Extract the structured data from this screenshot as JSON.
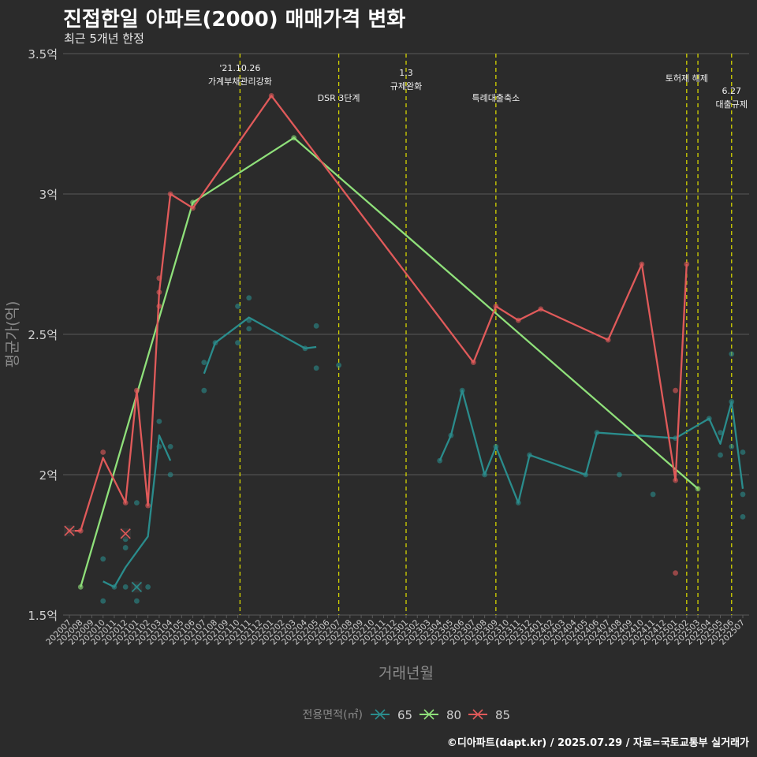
{
  "header": {
    "title": "진접한일 아파트(2000) 매매가격 변화",
    "subtitle": "최근 5개년 한정"
  },
  "footer": {
    "credit": "©디아파트(dapt.kr) / 2025.07.29 / 자료=국토교통부 실거래가"
  },
  "colors": {
    "background": "#2b2b2b",
    "grid": "#5a5a5a",
    "s65": "#2a8c8c",
    "s80": "#8fe07a",
    "s85": "#e05a5a",
    "event": "#d4d400",
    "axis_text": "#d0d0d0",
    "axis_title": "#8a8a8a"
  },
  "chart_data": {
    "type": "line",
    "xlabel": "거래년월",
    "ylabel": "평균가(억)",
    "ylim": [
      1.5,
      3.5
    ],
    "yticks": [
      1.5,
      2,
      2.5,
      3,
      3.5
    ],
    "ytick_labels": [
      "1.5억",
      "2억",
      "2.5억",
      "3억",
      "3.5억"
    ],
    "categories": [
      "202007",
      "202008",
      "202009",
      "202010",
      "202011",
      "202012",
      "202101",
      "202102",
      "202103",
      "202104",
      "202105",
      "202106",
      "202107",
      "202108",
      "202109",
      "202110",
      "202111",
      "202112",
      "202201",
      "202202",
      "202203",
      "202204",
      "202205",
      "202206",
      "202207",
      "202208",
      "202209",
      "202210",
      "202211",
      "202212",
      "202301",
      "202302",
      "202303",
      "202304",
      "202305",
      "202306",
      "202307",
      "202308",
      "202309",
      "202310",
      "202311",
      "202312",
      "202401",
      "202402",
      "202403",
      "202404",
      "202405",
      "202406",
      "202407",
      "202408",
      "202409",
      "202410",
      "202411",
      "202412",
      "202501",
      "202502",
      "202503",
      "202504",
      "202505",
      "202506",
      "202507"
    ],
    "legend": {
      "title": "전용면적(㎡)",
      "position": "bottom",
      "items": [
        "65",
        "80",
        "85"
      ]
    },
    "events": [
      {
        "x": 15.2,
        "label": "'21.10.26\n가계부채관리강화"
      },
      {
        "x": 24.0,
        "label": "DSR 3단계"
      },
      {
        "x": 30.0,
        "label": "1.3\n규제완화"
      },
      {
        "x": 38.0,
        "label": "특례대출축소"
      },
      {
        "x": 55.0,
        "label": "토허제 해제"
      },
      {
        "x": 56.0,
        "label": ""
      },
      {
        "x": 59.0,
        "label": "6.27\n대출규제"
      }
    ],
    "series": [
      {
        "name": "65",
        "line": [
          [
            3,
            1.62
          ],
          [
            4,
            1.6
          ],
          [
            5,
            1.67
          ],
          [
            7,
            1.78
          ],
          [
            8,
            2.14
          ],
          [
            9,
            2.05
          ],
          [
            12,
            2.36
          ],
          [
            13,
            2.47
          ],
          [
            15,
            2.53
          ],
          [
            16,
            2.56
          ],
          [
            21,
            2.45
          ],
          [
            22,
            2.455
          ],
          [
            33,
            2.05
          ],
          [
            34,
            2.14
          ],
          [
            35,
            2.3
          ],
          [
            37,
            2.0
          ],
          [
            38,
            2.1
          ],
          [
            40,
            1.9
          ],
          [
            41,
            2.07
          ],
          [
            46,
            2.0
          ],
          [
            47,
            2.15
          ],
          [
            54,
            2.13
          ],
          [
            57,
            2.2
          ],
          [
            58,
            2.11
          ],
          [
            59,
            2.26
          ],
          [
            60,
            1.95
          ]
        ],
        "segments": [
          [
            0,
            5
          ],
          [
            6,
            11
          ],
          [
            12,
            25
          ]
        ],
        "points": [
          [
            3,
            1.7
          ],
          [
            3,
            1.55
          ],
          [
            4,
            1.6
          ],
          [
            5,
            1.6
          ],
          [
            5,
            1.74
          ],
          [
            5,
            1.77
          ],
          [
            6,
            1.9
          ],
          [
            6,
            1.6
          ],
          [
            6,
            1.55
          ],
          [
            7,
            1.6
          ],
          [
            8,
            2.19
          ],
          [
            8,
            2.1
          ],
          [
            9,
            2.1
          ],
          [
            9,
            2.0
          ],
          [
            12,
            2.4
          ],
          [
            12,
            2.3
          ],
          [
            13,
            2.47
          ],
          [
            15,
            2.6
          ],
          [
            15,
            2.47
          ],
          [
            16,
            2.63
          ],
          [
            16,
            2.55
          ],
          [
            16,
            2.52
          ],
          [
            21,
            2.45
          ],
          [
            22,
            2.53
          ],
          [
            22,
            2.38
          ],
          [
            24,
            2.39
          ],
          [
            33,
            2.05
          ],
          [
            34,
            2.14
          ],
          [
            35,
            2.3
          ],
          [
            37,
            2.0
          ],
          [
            38,
            2.1
          ],
          [
            40,
            1.9
          ],
          [
            41,
            2.07
          ],
          [
            46,
            2.0
          ],
          [
            47,
            2.15
          ],
          [
            49,
            2.0
          ],
          [
            52,
            1.93
          ],
          [
            54,
            2.13
          ],
          [
            57,
            2.2
          ],
          [
            58,
            2.15
          ],
          [
            58,
            2.07
          ],
          [
            59,
            2.43
          ],
          [
            59,
            2.26
          ],
          [
            59,
            2.1
          ],
          [
            60,
            2.08
          ],
          [
            60,
            1.93
          ],
          [
            60,
            1.85
          ]
        ],
        "cross": [
          [
            6,
            1.6
          ]
        ]
      },
      {
        "name": "80",
        "line": [
          [
            1,
            1.6
          ],
          [
            11,
            2.97
          ],
          [
            20,
            3.2
          ],
          [
            56,
            1.95
          ]
        ],
        "segments": [
          [
            0,
            3
          ]
        ],
        "points": [
          [
            1,
            1.6
          ],
          [
            11,
            2.97
          ],
          [
            20,
            3.2
          ],
          [
            56,
            1.95
          ]
        ],
        "cross": []
      },
      {
        "name": "85",
        "line": [
          [
            0,
            1.8
          ],
          [
            1,
            1.8
          ],
          [
            3,
            2.06
          ],
          [
            5,
            1.9
          ],
          [
            6,
            2.3
          ],
          [
            7,
            1.89
          ],
          [
            8,
            2.65
          ],
          [
            9,
            3.0
          ],
          [
            11,
            2.95
          ],
          [
            18,
            3.35
          ],
          [
            36,
            2.4
          ],
          [
            38,
            2.6
          ],
          [
            40,
            2.55
          ],
          [
            42,
            2.59
          ],
          [
            48,
            2.48
          ],
          [
            51,
            2.75
          ],
          [
            54,
            1.98
          ],
          [
            55,
            2.75
          ]
        ],
        "segments": [
          [
            0,
            17
          ]
        ],
        "points": [
          [
            0,
            1.8
          ],
          [
            1,
            1.8
          ],
          [
            3,
            2.08
          ],
          [
            5,
            1.9
          ],
          [
            6,
            2.3
          ],
          [
            7,
            1.89
          ],
          [
            8,
            2.7
          ],
          [
            8,
            2.65
          ],
          [
            8,
            2.6
          ],
          [
            9,
            3.0
          ],
          [
            11,
            2.95
          ],
          [
            18,
            3.35
          ],
          [
            36,
            2.4
          ],
          [
            38,
            2.6
          ],
          [
            40,
            2.55
          ],
          [
            42,
            2.59
          ],
          [
            48,
            2.48
          ],
          [
            51,
            2.75
          ],
          [
            54,
            2.3
          ],
          [
            54,
            1.65
          ],
          [
            54,
            1.98
          ],
          [
            55,
            2.75
          ]
        ],
        "cross": [
          [
            0,
            1.8
          ],
          [
            5,
            1.79
          ]
        ]
      }
    ]
  }
}
